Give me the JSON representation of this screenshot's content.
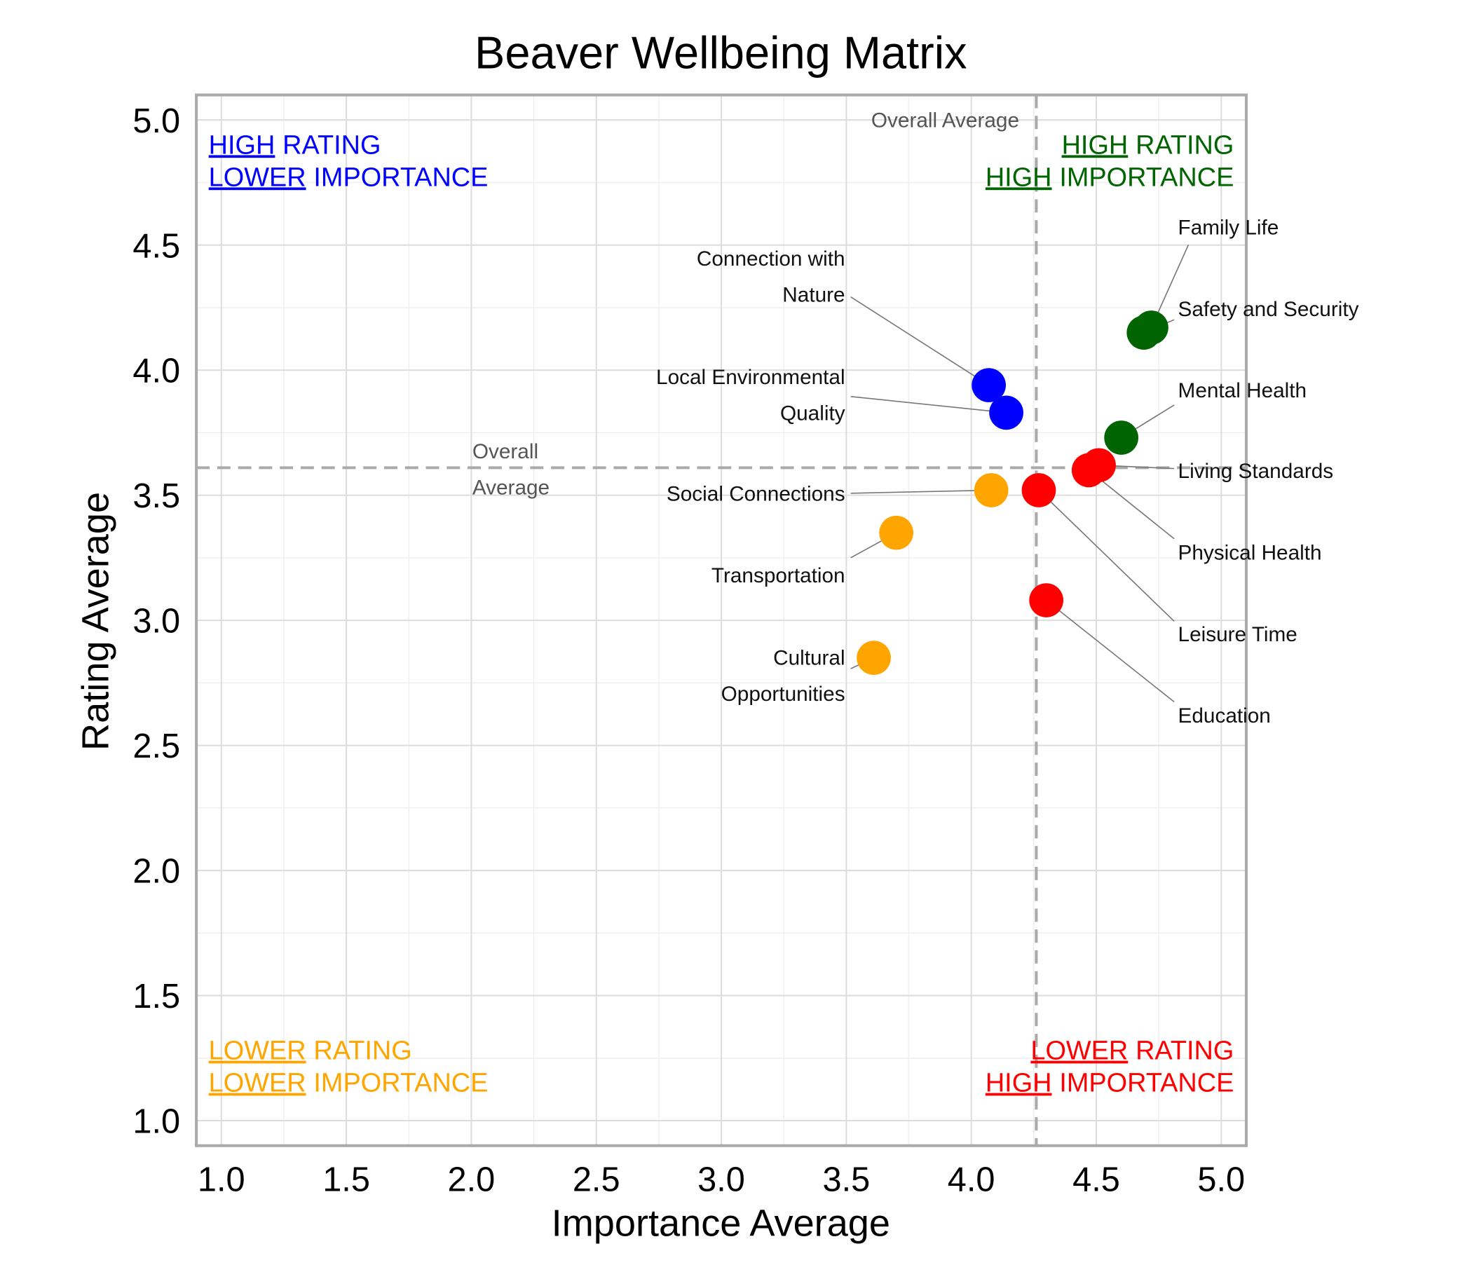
{
  "chart_data": {
    "type": "scatter",
    "title": "Beaver Wellbeing Matrix",
    "x_label": "Importance Average",
    "y_label": "Rating Average",
    "xlim": [
      0.9,
      5.1
    ],
    "ylim": [
      0.9,
      5.1
    ],
    "xticks": [
      {
        "value": 1,
        "label": "1.0"
      },
      {
        "value": 1.5,
        "label": "1.5"
      },
      {
        "value": 2,
        "label": "2.0"
      },
      {
        "value": 2.5,
        "label": "2.5"
      },
      {
        "value": 3,
        "label": "3.0"
      },
      {
        "value": 3.5,
        "label": "3.5"
      },
      {
        "value": 4,
        "label": "4.0"
      },
      {
        "value": 4.5,
        "label": "4.5"
      },
      {
        "value": 5,
        "label": "5.0"
      }
    ],
    "yticks": [
      {
        "value": 1,
        "label": "1.0"
      },
      {
        "value": 1.5,
        "label": "1.5"
      },
      {
        "value": 2,
        "label": "2.0"
      },
      {
        "value": 2.5,
        "label": "2.5"
      },
      {
        "value": 3,
        "label": "3.0"
      },
      {
        "value": 3.5,
        "label": "3.5"
      },
      {
        "value": 4,
        "label": "4.0"
      },
      {
        "value": 4.5,
        "label": "4.5"
      },
      {
        "value": 5,
        "label": "5.0"
      }
    ],
    "grid": true,
    "x_mean": 4.26,
    "x_mean_label": "Overall Average",
    "y_mean": 3.61,
    "y_mean_label": [
      "Overall",
      "Average"
    ],
    "quadrants": [
      {
        "corner": "top-left",
        "color": "#0000ff",
        "lines": [
          {
            "underlined": "HIGH",
            "rest": "RATING"
          },
          {
            "underlined": "LOWER",
            "rest": "IMPORTANCE"
          }
        ]
      },
      {
        "corner": "top-right",
        "color": "#006400",
        "lines": [
          {
            "underlined": "HIGH",
            "rest": "RATING"
          },
          {
            "underlined": "HIGH",
            "rest": "IMPORTANCE"
          }
        ]
      },
      {
        "corner": "bottom-left",
        "color": "#ffa500",
        "lines": [
          {
            "underlined": "LOWER",
            "rest": "RATING"
          },
          {
            "underlined": "LOWER",
            "rest": "IMPORTANCE"
          }
        ]
      },
      {
        "corner": "bottom-right",
        "color": "#ff0000",
        "lines": [
          {
            "underlined": "LOWER",
            "rest": "RATING"
          },
          {
            "underlined": "HIGH",
            "rest": "IMPORTANCE"
          }
        ]
      }
    ],
    "points": [
      {
        "label": [
          "Family Life"
        ],
        "x": 4.72,
        "y": 4.17,
        "color": "#006400"
      },
      {
        "label": [
          "Safety and Security"
        ],
        "x": 4.69,
        "y": 4.15,
        "color": "#006400"
      },
      {
        "label": [
          "Mental Health"
        ],
        "x": 4.6,
        "y": 3.73,
        "color": "#006400"
      },
      {
        "label": [
          "Living Standards"
        ],
        "x": 4.51,
        "y": 3.62,
        "color": "#ff0000"
      },
      {
        "label": [
          "Physical Health"
        ],
        "x": 4.47,
        "y": 3.6,
        "color": "#ff0000"
      },
      {
        "label": [
          "Leisure Time"
        ],
        "x": 4.27,
        "y": 3.52,
        "color": "#ff0000"
      },
      {
        "label": [
          "Education"
        ],
        "x": 4.3,
        "y": 3.08,
        "color": "#ff0000"
      },
      {
        "label": [
          "Connection with",
          "Nature"
        ],
        "x": 4.07,
        "y": 3.94,
        "color": "#0000ff"
      },
      {
        "label": [
          "Local Environmental",
          "Quality"
        ],
        "x": 4.14,
        "y": 3.83,
        "color": "#0000ff"
      },
      {
        "label": [
          "Social Connections"
        ],
        "x": 4.08,
        "y": 3.52,
        "color": "#ffa500"
      },
      {
        "label": [
          "Transportation"
        ],
        "x": 3.7,
        "y": 3.35,
        "color": "#ffa500"
      },
      {
        "label": [
          "Cultural",
          "Opportunities"
        ],
        "x": 3.61,
        "y": 2.85,
        "color": "#ffa500"
      }
    ]
  }
}
